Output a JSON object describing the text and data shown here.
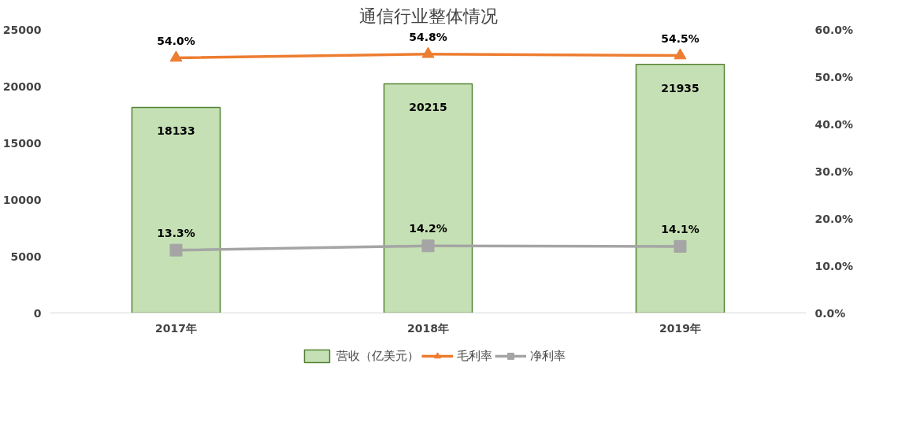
{
  "chart_data": {
    "type": "bar",
    "title": "通信行业整体情况",
    "categories": [
      "2017年",
      "2018年",
      "2019年"
    ],
    "series": [
      {
        "name": "营收（亿美元）",
        "type": "bar",
        "color": "#c5e0b4",
        "values": [
          18133,
          20215,
          21935
        ],
        "data_labels": true
      },
      {
        "name": "毛利率",
        "type": "line",
        "axis": "y2",
        "color": "#ed7d31",
        "marker": "triangle",
        "values": [
          54.0,
          54.8,
          54.5
        ],
        "value_labels": [
          "54.0%",
          "54.8%",
          "54.5%"
        ]
      },
      {
        "name": "净利率",
        "type": "line",
        "axis": "y2",
        "color": "#a5a5a5",
        "marker": "square",
        "values": [
          13.3,
          14.2,
          14.1
        ],
        "value_labels": [
          "13.3%",
          "14.2%",
          "14.1%"
        ]
      }
    ],
    "ylim": [
      0,
      25000
    ],
    "yticks": [
      0,
      5000,
      10000,
      15000,
      20000,
      25000
    ],
    "y2lim": [
      0,
      60
    ],
    "y2ticks": [
      {
        "value": 0,
        "label": "0.0%"
      },
      {
        "value": 10,
        "label": "10.0%"
      },
      {
        "value": 20,
        "label": "20.0%"
      },
      {
        "value": 30,
        "label": "30.0%"
      },
      {
        "value": 40,
        "label": "40.0%"
      },
      {
        "value": 50,
        "label": "50.0%"
      },
      {
        "value": 60,
        "label": "60.0%"
      }
    ],
    "grid": false,
    "legend": "bottom"
  }
}
